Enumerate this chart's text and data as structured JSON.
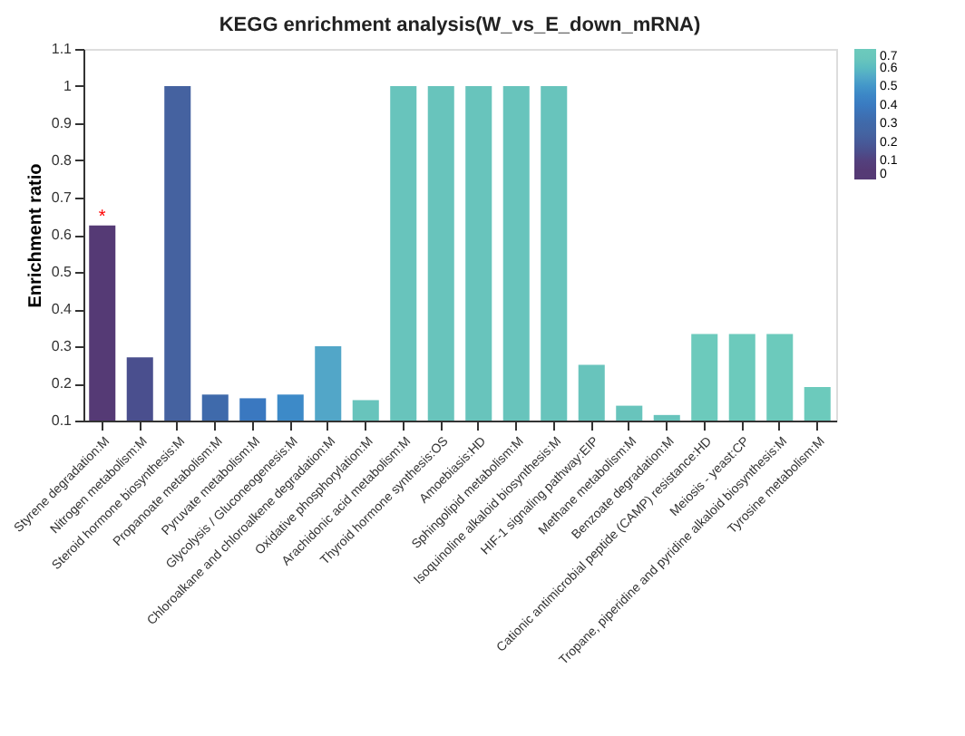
{
  "chart_data": {
    "type": "bar",
    "title": "KEGG enrichment analysis(W_vs_E_down_mRNA)",
    "ylabel": "Enrichment ratio",
    "categories": [
      "Styrene degradation:M",
      "Nitrogen metabolism:M",
      "Steroid hormone biosynthesis:M",
      "Propanoate metabolism:M",
      "Pyruvate metabolism:M",
      "Glycolysis / Gluconeogenesis:M",
      "Chloroalkane and chloroalkene degradation:M",
      "Oxidative phosphorylation:M",
      "Arachidonic acid metabolism:M",
      "Thyroid hormone synthesis:OS",
      "Amoebiasis:HD",
      "Sphingolipid metabolism:M",
      "Isoquinoline alkaloid biosynthesis:M",
      "HIF-1 signaling pathway:EIP",
      "Methane metabolism:M",
      "Benzoate degradation:M",
      "Cationic antimicrobial peptide (CAMP) resistance:HD",
      "Meiosis - yeast:CP",
      "Tropane, piperidine and pyridine alkaloid biosynthesis:M",
      "Tyrosine metabolism:M"
    ],
    "values": [
      0.625,
      0.27,
      1.0,
      0.17,
      0.16,
      0.17,
      0.3,
      0.155,
      1.0,
      1.0,
      1.0,
      1.0,
      1.0,
      0.25,
      0.14,
      0.115,
      0.333,
      0.333,
      0.333,
      0.19
    ],
    "cvalues": [
      0.03,
      0.16,
      0.25,
      0.32,
      0.39,
      0.45,
      0.55,
      0.68,
      0.68,
      0.68,
      0.68,
      0.68,
      0.68,
      0.68,
      0.68,
      0.68,
      0.7,
      0.7,
      0.7,
      0.7
    ],
    "colors": [
      "#553a75",
      "#4a4f8e",
      "#4562a0",
      "#3f6aab",
      "#3a78c0",
      "#3d8ac8",
      "#52a6c8",
      "#68c4bc",
      "#68c4bc",
      "#68c4bc",
      "#68c4bc",
      "#68c4bc",
      "#68c4bc",
      "#68c4bc",
      "#68c4bc",
      "#68c4bc",
      "#6ccabc",
      "#6ccabc",
      "#6ccabc",
      "#6ccabc"
    ],
    "clim": [
      0,
      0.7
    ],
    "cticks": [
      0,
      0.1,
      0.2,
      0.3,
      0.4,
      0.5,
      0.6,
      0.7
    ],
    "ylim": [
      0.1,
      1.1
    ],
    "yticks": [
      0.1,
      0.2,
      0.3,
      0.4,
      0.5,
      0.6,
      0.7,
      0.8,
      0.9,
      1,
      1.1
    ],
    "annotations": [
      {
        "text": "*",
        "x": "Styrene degradation:M",
        "y": 0.65
      }
    ],
    "grid": false
  }
}
